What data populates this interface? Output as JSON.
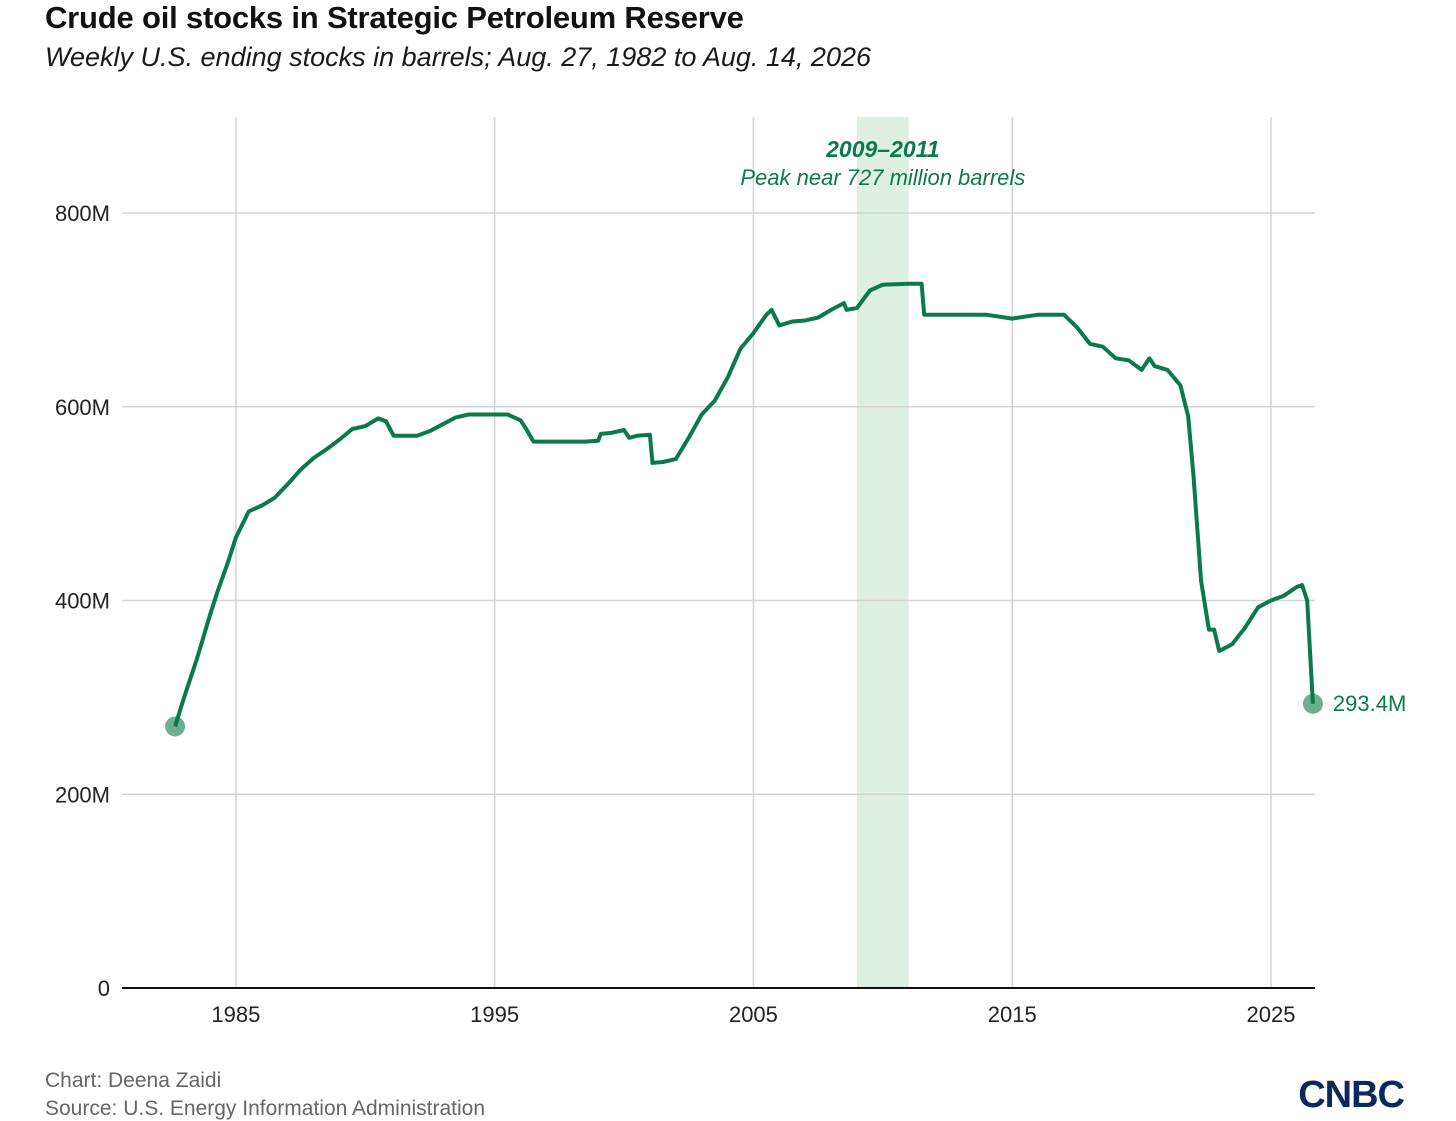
{
  "title": "Crude oil stocks in Strategic Petroleum Reserve",
  "subtitle": "Weekly U.S. ending stocks in barrels; Aug. 27, 1982 to Aug. 14, 2026",
  "credit": "Chart: Deena Zaidi",
  "source": "Source: U.S. Energy Information Administration",
  "logo": "CNBC",
  "colors": {
    "line": "#0a7a4a",
    "highlight": "#dff0e2",
    "grid": "#d4d4d4",
    "text": "#222222",
    "logo": "#0b2a5b"
  },
  "chart_data": {
    "type": "line",
    "title": "Crude oil stocks in Strategic Petroleum Reserve",
    "xlabel": "",
    "ylabel": "",
    "xlim": [
      1980.6,
      2026.7
    ],
    "ylim": [
      0,
      800
    ],
    "x_ticks": [
      "1985",
      "1995",
      "2005",
      "2015",
      "2025"
    ],
    "y_ticks": [
      "0",
      "200M",
      "400M",
      "600M",
      "800M"
    ],
    "grid": true,
    "highlight": {
      "x_start": 2009,
      "x_end": 2011,
      "label": "2009–2011",
      "note": "Peak near 727 million barrels"
    },
    "end_label": "293.4M",
    "series": [
      {
        "x": [
          1982.65,
          1983.0,
          1983.5,
          1984.0,
          1984.3,
          1984.7,
          1985.0,
          1985.5,
          1986.0,
          1986.5,
          1987.0,
          1987.5,
          1988.0,
          1988.5,
          1989.0,
          1989.5,
          1990.0,
          1990.5,
          1990.8,
          1991.1,
          1991.2,
          1992.0,
          1992.5,
          1993.0,
          1993.5,
          1994.0,
          1994.5,
          1995.0,
          1995.5,
          1996.0,
          1996.2,
          1996.5,
          1997.0,
          1997.5,
          1998.0,
          1998.5,
          1999.0,
          1999.1,
          1999.5,
          2000.0,
          2000.2,
          2000.5,
          2001.0,
          2001.1,
          2001.5,
          2002.0,
          2002.5,
          2003.0,
          2003.5,
          2004.0,
          2004.5,
          2005.0,
          2005.5,
          2005.7,
          2006.0,
          2006.5,
          2007.0,
          2007.5,
          2008.0,
          2008.5,
          2008.6,
          2009.0,
          2009.5,
          2010.0,
          2011.0,
          2011.5,
          2011.6,
          2012.0,
          2012.5,
          2013.0,
          2014.0,
          2015.0,
          2016.0,
          2016.5,
          2017.0,
          2017.5,
          2018.0,
          2018.5,
          2019.0,
          2019.5,
          2020.0,
          2020.3,
          2020.5,
          2021.0,
          2021.5,
          2021.8,
          2022.0,
          2022.3,
          2022.6,
          2022.8,
          2023.0,
          2023.3,
          2023.5,
          2024.0,
          2024.5,
          2025.0,
          2025.5,
          2026.0,
          2026.2,
          2026.4,
          2026.62
        ],
        "y": [
          270,
          300,
          340,
          385,
          410,
          440,
          465,
          492,
          498,
          506,
          520,
          535,
          547,
          556,
          566,
          577,
          580,
          588,
          585,
          570,
          570,
          570,
          575,
          582,
          589,
          592,
          592,
          592,
          592,
          586,
          578,
          564,
          564,
          564,
          564,
          564,
          565,
          572,
          573,
          576,
          568,
          570,
          571,
          542,
          543,
          546,
          568,
          592,
          606,
          630,
          660,
          676,
          695,
          700,
          684,
          688,
          689,
          692,
          700,
          707,
          700,
          702,
          720,
          726,
          727,
          727,
          695,
          695,
          695,
          695,
          695,
          691,
          695,
          695,
          695,
          682,
          665,
          662,
          650,
          648,
          638,
          650,
          642,
          638,
          622,
          590,
          530,
          420,
          370,
          370,
          348,
          352,
          355,
          372,
          393,
          400,
          405,
          414,
          416,
          400,
          293.4
        ]
      }
    ]
  }
}
